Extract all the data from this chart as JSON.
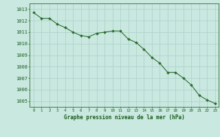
{
  "x": [
    0,
    1,
    2,
    3,
    4,
    5,
    6,
    7,
    8,
    9,
    10,
    11,
    12,
    13,
    14,
    15,
    16,
    17,
    18,
    19,
    20,
    21,
    22,
    23
  ],
  "y": [
    1012.7,
    1012.2,
    1012.2,
    1011.7,
    1011.4,
    1011.0,
    1010.7,
    1010.6,
    1010.9,
    1011.0,
    1011.1,
    1011.1,
    1010.4,
    1010.1,
    1009.5,
    1008.8,
    1008.3,
    1007.5,
    1007.5,
    1007.0,
    1006.4,
    1005.5,
    1005.1,
    1004.8
  ],
  "ylim": [
    1004.5,
    1013.5
  ],
  "xlim": [
    -0.5,
    23.5
  ],
  "yticks": [
    1005,
    1006,
    1007,
    1008,
    1009,
    1010,
    1011,
    1012,
    1013
  ],
  "xticks": [
    0,
    1,
    2,
    3,
    4,
    5,
    6,
    7,
    8,
    9,
    10,
    11,
    12,
    13,
    14,
    15,
    16,
    17,
    18,
    19,
    20,
    21,
    22,
    23
  ],
  "line_color": "#2d6b2d",
  "marker_color": "#2d6b2d",
  "bg_color": "#c8e8e0",
  "grid_color": "#aacfc8",
  "xlabel": "Graphe pression niveau de la mer (hPa)",
  "xlabel_color": "#1a5c1a",
  "tick_color": "#1a5c1a",
  "axis_color": "#2d6b2d"
}
